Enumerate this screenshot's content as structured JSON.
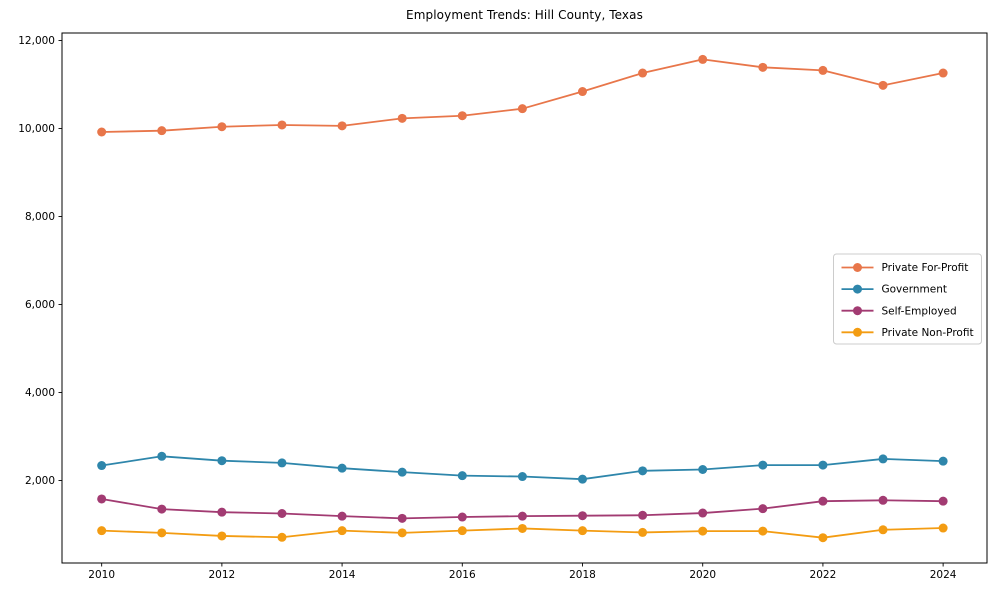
{
  "figure": {
    "title": "Employment Trends: Hill County, Texas"
  },
  "chart_data": {
    "type": "line",
    "title": "Employment Trends: Hill County, Texas",
    "xlabel": "",
    "ylabel": "",
    "x": [
      2010,
      2011,
      2012,
      2013,
      2014,
      2015,
      2016,
      2017,
      2018,
      2019,
      2020,
      2021,
      2022,
      2023,
      2024
    ],
    "series": [
      {
        "name": "Private For-Profit",
        "color": "#E8764A",
        "values": [
          9920,
          9950,
          10040,
          10080,
          10060,
          10230,
          10290,
          10450,
          10840,
          11260,
          11570,
          11390,
          11320,
          10980,
          11260
        ]
      },
      {
        "name": "Government",
        "color": "#2E86AB",
        "values": [
          2340,
          2550,
          2450,
          2400,
          2280,
          2190,
          2110,
          2090,
          2030,
          2220,
          2250,
          2350,
          2350,
          2490,
          2440
        ]
      },
      {
        "name": "Self-Employed",
        "color": "#A23B72",
        "values": [
          1580,
          1350,
          1280,
          1250,
          1190,
          1140,
          1170,
          1190,
          1200,
          1210,
          1260,
          1360,
          1530,
          1550,
          1530
        ]
      },
      {
        "name": "Private Non-Profit",
        "color": "#F39C12",
        "values": [
          860,
          810,
          740,
          710,
          860,
          810,
          860,
          910,
          860,
          820,
          850,
          850,
          700,
          880,
          920
        ]
      }
    ],
    "xlim": [
      2009.34,
      2024.73
    ],
    "ylim": [
      125,
      12170
    ],
    "xticks": {
      "values": [
        2010,
        2012,
        2014,
        2016,
        2018,
        2020,
        2022,
        2024
      ],
      "labels": [
        "2010",
        "2012",
        "2014",
        "2016",
        "2018",
        "2020",
        "2022",
        "2024"
      ]
    },
    "yticks": {
      "values": [
        2000,
        4000,
        6000,
        8000,
        10000,
        12000
      ],
      "labels": [
        "2,000",
        "4,000",
        "6,000",
        "8,000",
        "10,000",
        "12,000"
      ]
    },
    "grid": false,
    "legend_position": "center right",
    "marker": "circle",
    "axis_color": "#000000",
    "legend_border_color": "#cccccc"
  }
}
